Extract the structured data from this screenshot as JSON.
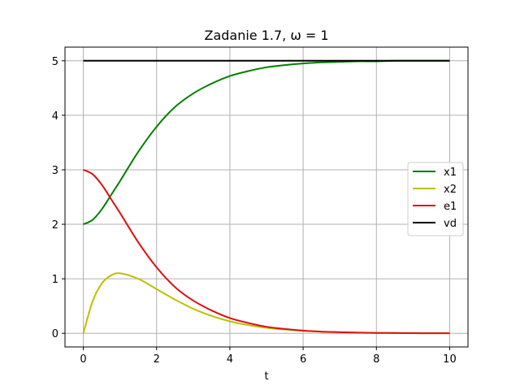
{
  "chart_data": {
    "type": "line",
    "title": "Zadanie 1.7, ω = 1",
    "xlabel": "t",
    "ylabel": "",
    "xlim": [
      -0.5,
      10.5
    ],
    "ylim": [
      -0.25,
      5.25
    ],
    "xticks": [
      0,
      2,
      4,
      6,
      8,
      10
    ],
    "yticks": [
      0,
      1,
      2,
      3,
      4,
      5
    ],
    "grid": true,
    "legend_position": "center-right",
    "series": [
      {
        "name": "x1",
        "color": "#008000",
        "x": [
          0,
          0.25,
          0.5,
          0.75,
          1,
          1.5,
          2,
          2.5,
          3,
          3.5,
          4,
          4.5,
          5,
          5.5,
          6,
          6.5,
          7,
          7.5,
          8,
          8.5,
          9,
          9.5,
          10
        ],
        "y": [
          2.0,
          2.08,
          2.27,
          2.53,
          2.79,
          3.33,
          3.79,
          4.15,
          4.4,
          4.58,
          4.72,
          4.81,
          4.88,
          4.92,
          4.95,
          4.97,
          4.98,
          4.99,
          4.99,
          5.0,
          5.0,
          5.0,
          5.0
        ]
      },
      {
        "name": "x2",
        "color": "#bfbf00",
        "x": [
          0,
          0.25,
          0.5,
          0.75,
          1,
          1.5,
          2,
          2.5,
          3,
          3.5,
          4,
          4.5,
          5,
          5.5,
          6,
          6.5,
          7,
          7.5,
          8,
          8.5,
          9,
          9.5,
          10
        ],
        "y": [
          0.0,
          0.58,
          0.91,
          1.06,
          1.1,
          1.0,
          0.81,
          0.62,
          0.45,
          0.32,
          0.22,
          0.15,
          0.1,
          0.07,
          0.045,
          0.03,
          0.02,
          0.012,
          0.008,
          0.005,
          0.003,
          0.002,
          0.001
        ]
      },
      {
        "name": "e1",
        "color": "#dd1111",
        "x": [
          0,
          0.25,
          0.5,
          0.75,
          1,
          1.5,
          2,
          2.5,
          3,
          3.5,
          4,
          4.5,
          5,
          5.5,
          6,
          6.5,
          7,
          7.5,
          8,
          8.5,
          9,
          9.5,
          10
        ],
        "y": [
          3.0,
          2.92,
          2.73,
          2.47,
          2.21,
          1.67,
          1.21,
          0.85,
          0.6,
          0.42,
          0.28,
          0.19,
          0.12,
          0.08,
          0.05,
          0.03,
          0.02,
          0.013,
          0.008,
          0.005,
          0.003,
          0.002,
          0.001
        ]
      },
      {
        "name": "vd",
        "color": "#000000",
        "x": [
          0,
          10
        ],
        "y": [
          5,
          5
        ]
      }
    ]
  }
}
